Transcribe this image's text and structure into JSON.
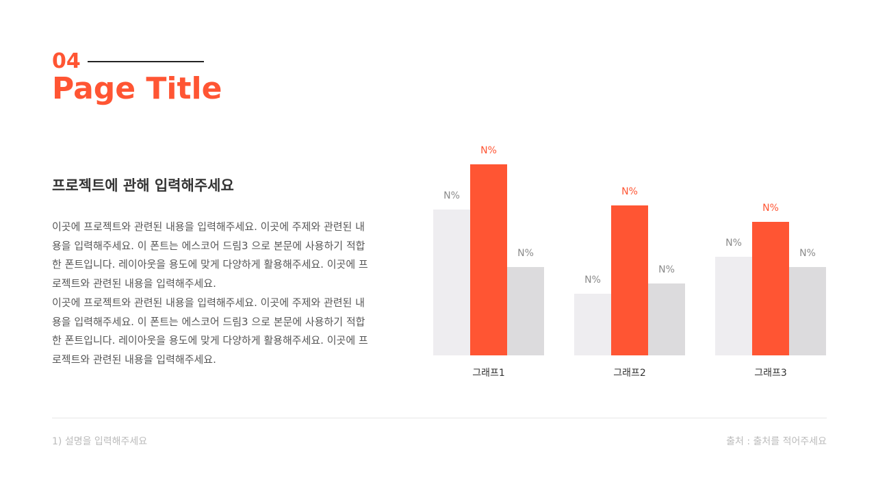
{
  "header": {
    "number": "04",
    "title": "Page Title"
  },
  "body": {
    "heading": "프로젝트에 관해 입력해주세요",
    "lines": [
      "이곳에 프로젝트와 관련된 내용을 입력해주세요. 이곳에 주제와 관련된 내",
      "용을 입력해주세요. 이 폰트는 에스코어 드림3 으로 본문에 사용하기 적합",
      "한 폰트입니다. 레이아웃을 용도에 맞게 다양하게 활용해주세요. 이곳에 프",
      "로젝트와 관련된 내용을 입력해주세요.",
      "이곳에 프로젝트와 관련된 내용을 입력해주세요. 이곳에 주제와 관련된 내",
      "용을 입력해주세요. 이 폰트는 에스코어 드림3 으로 본문에 사용하기 적합",
      "한 폰트입니다. 레이아웃을 용도에 맞게 다양하게 활용해주세요. 이곳에 프",
      "로젝트와 관련된 내용을 입력해주세요."
    ]
  },
  "chart_data": {
    "type": "bar",
    "categories": [
      "그래프1",
      "그래프2",
      "그래프3"
    ],
    "ylim": [
      0,
      100
    ],
    "series": [
      {
        "color": "#eeedf0",
        "label_color": "#8a8a8a",
        "values": [
          71,
          30,
          48
        ],
        "value_labels": [
          "N%",
          "N%",
          "N%"
        ]
      },
      {
        "color": "#ff5533",
        "label_color": "#ff5533",
        "values": [
          93,
          73,
          65
        ],
        "value_labels": [
          "N%",
          "N%",
          "N%"
        ]
      },
      {
        "color": "#dcdbdd",
        "label_color": "#8a8a8a",
        "values": [
          43,
          35,
          43
        ],
        "value_labels": [
          "N%",
          "N%",
          "N%"
        ]
      }
    ]
  },
  "footer": {
    "note": "1) 설명을 입력해주세요",
    "source": "출처 : 출처를 적어주세요"
  }
}
